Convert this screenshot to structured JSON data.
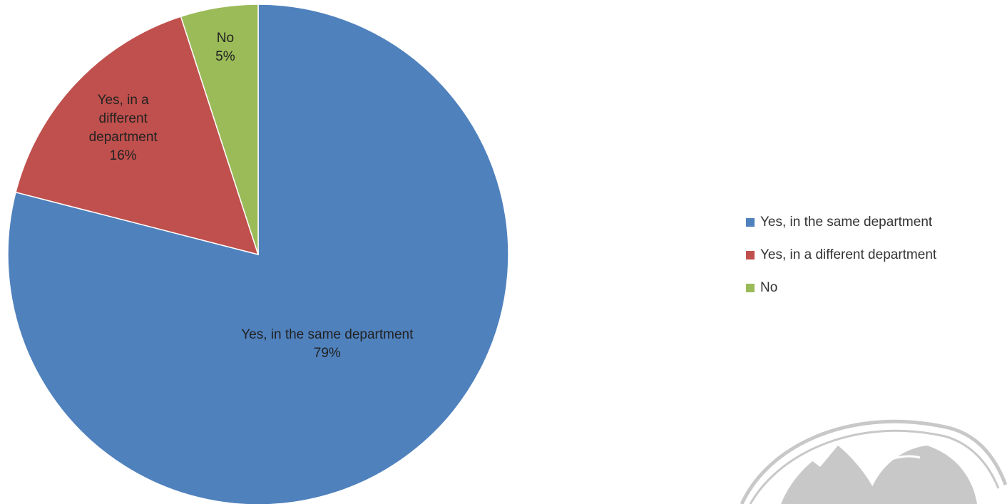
{
  "chart_data": {
    "type": "pie",
    "title": "",
    "slices": [
      {
        "label": "Yes, in the same department",
        "value": 79,
        "value_label": "79%",
        "color": "#4F81BD"
      },
      {
        "label": "Yes, in a different department",
        "value": 16,
        "value_label": "16%",
        "color": "#C0504D"
      },
      {
        "label": "No",
        "value": 5,
        "value_label": "5%",
        "color": "#9BBB59"
      }
    ],
    "legend": {
      "position": "right",
      "items": [
        "Yes, in the same department",
        "Yes, in a different department",
        "No"
      ]
    }
  },
  "watermark": {
    "icon": "feather-logo-watermark-icon",
    "color": "#c8c8c8"
  }
}
